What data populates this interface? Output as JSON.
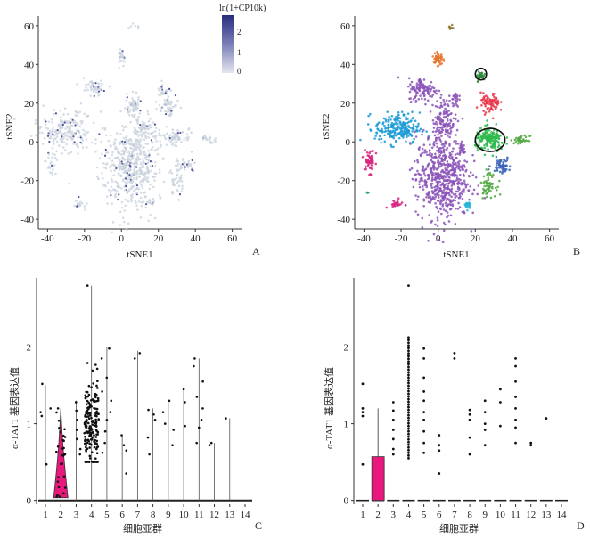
{
  "colors": {
    "gray_point": "#c8d2dc",
    "dark_point": "#3b3f8f",
    "violin_fill": "#e8187c",
    "box_fill": "#e8187c",
    "cluster_purple": "#8b54b8",
    "cluster_blue": "#1a9ad6",
    "cluster_red": "#e8364a",
    "cluster_orange": "#e8742a",
    "cluster_magenta": "#d8237e",
    "cluster_green": "#52a842",
    "cluster_darkgreen": "#2e8a3a",
    "cluster_royal": "#3a65b8",
    "cluster_lime": "#2eb84c",
    "cluster_olive": "#8c7a30",
    "cluster_cyan": "#28b4d8",
    "cluster_teal": "#20a07a",
    "highlight_outline": "#111111"
  },
  "chart_data": [
    {
      "panel": "A",
      "type": "scatter",
      "xlabel": "tSNE1",
      "ylabel": "tSNE2",
      "xticks": [
        -40,
        -20,
        0,
        20,
        40,
        60
      ],
      "yticks": [
        -40,
        -20,
        0,
        20,
        40,
        60
      ],
      "xlim": [
        -45,
        65
      ],
      "ylim": [
        -45,
        65
      ],
      "legend": {
        "title": "ln(1+CP10k)",
        "ticks": [
          "2",
          "1",
          "0"
        ],
        "position": "top-right"
      },
      "clusters": [
        {
          "x": -30,
          "y": 6,
          "sx": 8,
          "sy": 5,
          "n": 200
        },
        {
          "x": 4,
          "y": -13,
          "sx": 8,
          "sy": 10,
          "n": 500
        },
        {
          "x": 12,
          "y": 7,
          "sx": 3,
          "sy": 4,
          "n": 80
        },
        {
          "x": 6,
          "y": 18,
          "sx": 2,
          "sy": 3,
          "n": 60
        },
        {
          "x": -14,
          "y": 28,
          "sx": 3,
          "sy": 2,
          "n": 50
        },
        {
          "x": 0,
          "y": 44,
          "sx": 1,
          "sy": 2,
          "n": 30
        },
        {
          "x": 23,
          "y": 26,
          "sx": 2,
          "sy": 2,
          "n": 25
        },
        {
          "x": 26,
          "y": 18,
          "sx": 3,
          "sy": 3,
          "n": 50
        },
        {
          "x": 29,
          "y": 3,
          "sx": 4,
          "sy": 2,
          "n": 70
        },
        {
          "x": 34,
          "y": -12,
          "sx": 3,
          "sy": 2,
          "n": 40
        },
        {
          "x": 30,
          "y": -22,
          "sx": 2,
          "sy": 3,
          "n": 30
        },
        {
          "x": 48,
          "y": 1,
          "sx": 2,
          "sy": 1,
          "n": 20
        },
        {
          "x": -38,
          "y": -10,
          "sx": 2,
          "sy": 4,
          "n": 25
        },
        {
          "x": -23,
          "y": -33,
          "sx": 2,
          "sy": 1,
          "n": 15
        },
        {
          "x": 16,
          "y": -31,
          "sx": 2,
          "sy": 1,
          "n": 15
        },
        {
          "x": 7,
          "y": 60,
          "sx": 1,
          "sy": 1,
          "n": 6
        }
      ]
    },
    {
      "panel": "B",
      "type": "scatter",
      "xlabel": "tSNE1",
      "ylabel": "tSNE2",
      "xticks": [
        -40,
        -20,
        0,
        20,
        40,
        60
      ],
      "yticks": [
        -40,
        -20,
        0,
        20,
        40,
        60
      ],
      "xlim": [
        -45,
        65
      ],
      "ylim": [
        -45,
        65
      ],
      "clusters": [
        {
          "x": -22,
          "y": 7,
          "sx": 6,
          "sy": 4,
          "n": 220,
          "color": "cluster_blue"
        },
        {
          "x": -8,
          "y": 27,
          "sx": 4,
          "sy": 3,
          "n": 110,
          "color": "cluster_purple"
        },
        {
          "x": 2,
          "y": -18,
          "sx": 7,
          "sy": 11,
          "n": 600,
          "color": "cluster_purple"
        },
        {
          "x": 3,
          "y": 12,
          "sx": 3,
          "sy": 5,
          "n": 120,
          "color": "cluster_purple"
        },
        {
          "x": 9,
          "y": 22,
          "sx": 1,
          "sy": 2,
          "n": 25,
          "color": "cluster_purple"
        },
        {
          "x": 0,
          "y": 43,
          "sx": 1.2,
          "sy": 2,
          "n": 50,
          "color": "cluster_orange"
        },
        {
          "x": 7,
          "y": 59,
          "sx": 0.6,
          "sy": 0.8,
          "n": 8,
          "color": "cluster_olive"
        },
        {
          "x": 13,
          "y": -4,
          "sx": 1,
          "sy": 2,
          "n": 20,
          "color": "cluster_purple"
        },
        {
          "x": 28,
          "y": 20,
          "sx": 2.5,
          "sy": 2.5,
          "n": 80,
          "color": "cluster_red"
        },
        {
          "x": 23,
          "y": 34,
          "sx": 1.2,
          "sy": 1.2,
          "n": 30,
          "color": "cluster_darkgreen"
        },
        {
          "x": 28,
          "y": 1,
          "sx": 4,
          "sy": 3,
          "n": 160,
          "color": "cluster_lime"
        },
        {
          "x": 34,
          "y": -12,
          "sx": 2.5,
          "sy": 2,
          "n": 60,
          "color": "cluster_royal"
        },
        {
          "x": 27,
          "y": -22,
          "sx": 2,
          "sy": 3,
          "n": 60,
          "color": "cluster_green"
        },
        {
          "x": 45,
          "y": 1,
          "sx": 2,
          "sy": 1,
          "n": 35,
          "color": "cluster_green"
        },
        {
          "x": -37,
          "y": -10,
          "sx": 1.5,
          "sy": 3,
          "n": 50,
          "color": "cluster_magenta"
        },
        {
          "x": -23,
          "y": -32,
          "sx": 2,
          "sy": 1,
          "n": 25,
          "color": "cluster_magenta"
        },
        {
          "x": 16,
          "y": -33,
          "sx": 1.2,
          "sy": 1,
          "n": 20,
          "color": "cluster_cyan"
        },
        {
          "x": -38,
          "y": -26,
          "sx": 0.5,
          "sy": 0.5,
          "n": 3,
          "color": "cluster_teal"
        }
      ],
      "outlined": [
        {
          "x": 23,
          "y": 35,
          "rx": 3,
          "ry": 3
        },
        {
          "x": 28,
          "y": 1,
          "rx": 8,
          "ry": 6
        }
      ]
    },
    {
      "panel": "C",
      "type": "violin",
      "xlabel": "细胞亚群",
      "ylabel": "α-TAT1 基因表达值",
      "categories": [
        "1",
        "2",
        "3",
        "4",
        "5",
        "6",
        "7",
        "8",
        "9",
        "10",
        "11",
        "12",
        "13",
        "14"
      ],
      "yticks": [
        0,
        1,
        2
      ],
      "ylim": [
        -0.05,
        2.9
      ],
      "max_values": [
        1.5,
        1.2,
        1.3,
        2.8,
        2.0,
        0.85,
        1.95,
        1.2,
        1.3,
        1.45,
        1.85,
        0.75,
        1.07,
        0.0
      ],
      "highlight_category": "2"
    },
    {
      "panel": "D",
      "type": "box",
      "xlabel": "细胞亚群",
      "ylabel": "α-TAT1 基因表达值",
      "categories": [
        "1",
        "2",
        "3",
        "4",
        "5",
        "6",
        "7",
        "8",
        "9",
        "10",
        "11",
        "12",
        "13",
        "14"
      ],
      "yticks": [
        0,
        1,
        2
      ],
      "ylim": [
        -0.05,
        2.9
      ],
      "box_category": "2",
      "box": {
        "q1": 0,
        "median": 0,
        "q3": 0.57,
        "whisker_high": 1.2
      },
      "outliers": {
        "1": [
          1.52,
          1.2,
          1.15,
          1.1,
          0.47
        ],
        "3": [
          1.28,
          1.17,
          1.05,
          0.92,
          0.8,
          0.67,
          0.6
        ],
        "5": [
          1.98,
          1.85,
          1.6,
          1.42,
          1.3,
          1.15,
          1.05,
          0.9,
          0.75,
          0.62
        ],
        "6": [
          0.85,
          0.72,
          0.65,
          0.35
        ],
        "7": [
          1.92,
          1.85
        ],
        "8": [
          1.18,
          1.12,
          1.05,
          0.82,
          0.6
        ],
        "9": [
          1.3,
          1.15,
          1.0,
          0.92,
          0.72
        ],
        "10": [
          1.45,
          1.28,
          0.97
        ],
        "11": [
          1.85,
          1.75,
          1.55,
          1.35,
          1.2,
          1.05,
          0.95,
          0.75
        ],
        "12": [
          0.75,
          0.72
        ],
        "13": [
          1.07
        ]
      },
      "cluster4_range": [
        0.55,
        2.15
      ],
      "cluster4_max": 2.8
    }
  ],
  "panel_labels": {
    "a": "A",
    "b": "B",
    "c": "C",
    "d": "D"
  },
  "legend_a": {
    "title": "ln(1+CP10k)",
    "t2": "2",
    "t1": "1",
    "t0": "0"
  }
}
